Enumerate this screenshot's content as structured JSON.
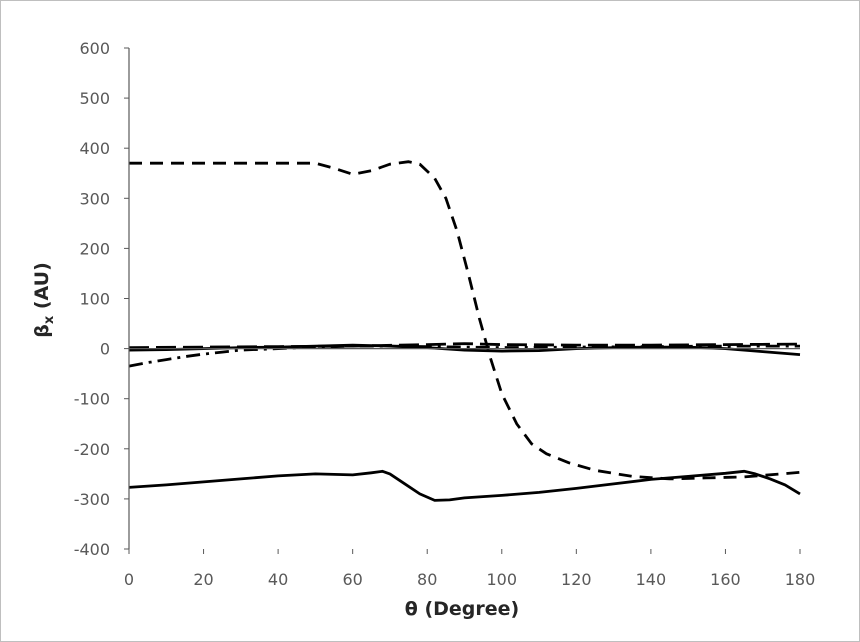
{
  "chart_data": {
    "type": "line",
    "title": "",
    "xlabel": "θ (Degree)",
    "ylabel": {
      "main": "β",
      "sub": "x",
      "tail": " (AU)"
    },
    "xlim": [
      0,
      180
    ],
    "ylim": [
      -400,
      600
    ],
    "xticks": [
      0,
      20,
      40,
      60,
      80,
      100,
      120,
      140,
      160,
      180
    ],
    "yticks": [
      -400,
      -300,
      -200,
      -100,
      0,
      100,
      200,
      300,
      400,
      500,
      600
    ],
    "grid": false,
    "legend": "none",
    "series": [
      {
        "style": "dashed",
        "color": "#000000",
        "x": [
          0,
          10,
          20,
          30,
          40,
          50,
          55,
          60,
          65,
          70,
          75,
          78,
          82,
          85,
          88,
          91,
          94,
          97,
          100,
          104,
          108,
          112,
          118,
          125,
          135,
          145,
          155,
          165,
          170,
          175,
          180
        ],
        "y": [
          370,
          370,
          370,
          370,
          370,
          370,
          360,
          348,
          355,
          368,
          373,
          368,
          340,
          300,
          235,
          150,
          60,
          -20,
          -90,
          -150,
          -190,
          -210,
          -228,
          -243,
          -255,
          -260,
          -258,
          -256,
          -253,
          -250,
          -247
        ]
      },
      {
        "style": "solid",
        "color": "#000000",
        "x": [
          0,
          10,
          20,
          30,
          40,
          50,
          60,
          65,
          68,
          70,
          74,
          78,
          82,
          86,
          90,
          100,
          110,
          120,
          130,
          140,
          150,
          160,
          165,
          168,
          172,
          176,
          180
        ],
        "y": [
          -277,
          -272,
          -266,
          -260,
          -254,
          -250,
          -252,
          -248,
          -245,
          -250,
          -270,
          -290,
          -303,
          -302,
          -298,
          -293,
          -287,
          -279,
          -270,
          -261,
          -255,
          -249,
          -245,
          -250,
          -260,
          -272,
          -290
        ]
      },
      {
        "style": "solid",
        "color": "#000000",
        "x": [
          0,
          10,
          20,
          30,
          40,
          50,
          60,
          70,
          80,
          90,
          100,
          110,
          120,
          130,
          140,
          150,
          160,
          170,
          180
        ],
        "y": [
          -3,
          -2,
          0,
          2,
          3,
          5,
          7,
          5,
          2,
          -3,
          -5,
          -4,
          0,
          2,
          3,
          3,
          0,
          -6,
          -12
        ]
      },
      {
        "style": "dashdot",
        "color": "#000000",
        "x": [
          0,
          5,
          10,
          15,
          20,
          25,
          30,
          40,
          50,
          60,
          70,
          80,
          90,
          100,
          120,
          140,
          160,
          180
        ],
        "y": [
          -35,
          -28,
          -22,
          -16,
          -11,
          -7,
          -3,
          0,
          3,
          5,
          5,
          4,
          3,
          2,
          3,
          4,
          5,
          5
        ]
      },
      {
        "style": "longdash",
        "color": "#000000",
        "x": [
          0,
          20,
          40,
          60,
          80,
          90,
          95,
          100,
          120,
          140,
          160,
          180
        ],
        "y": [
          2,
          3,
          4,
          5,
          8,
          10,
          9,
          8,
          7,
          7,
          8,
          9
        ]
      }
    ]
  }
}
